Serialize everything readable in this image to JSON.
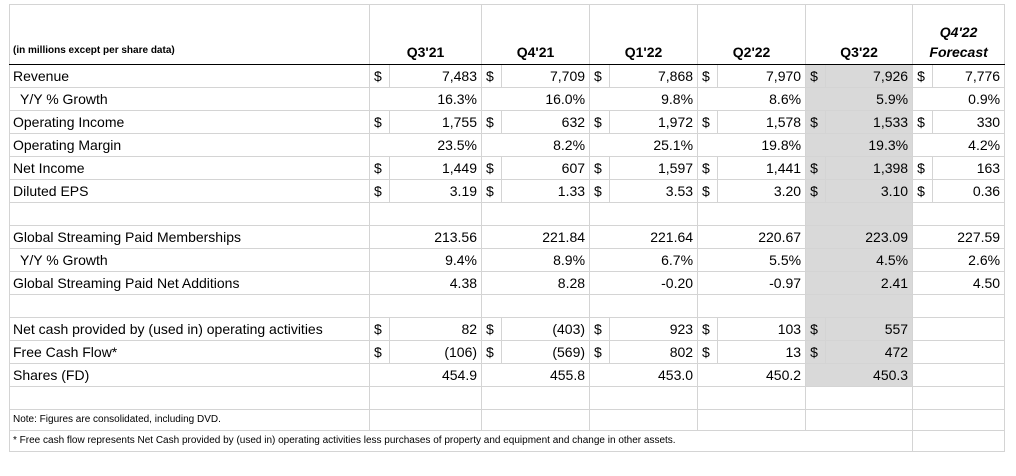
{
  "header": {
    "units_label": "(in millions except per share data)",
    "q3_21": "Q3'21",
    "q4_21": "Q4'21",
    "q1_22": "Q1'22",
    "q2_22": "Q2'22",
    "q3_22": "Q3'22",
    "q4_22": "Q4'22",
    "q4_22_sub": "Forecast"
  },
  "currency_symbol": "$",
  "rows": {
    "revenue": {
      "label": "Revenue",
      "v": [
        "7,483",
        "7,709",
        "7,868",
        "7,970",
        "7,926",
        "7,776"
      ]
    },
    "revenue_growth": {
      "label": "Y/Y % Growth",
      "v": [
        "16.3%",
        "16.0%",
        "9.8%",
        "8.6%",
        "5.9%",
        "0.9%"
      ]
    },
    "op_income": {
      "label": "Operating Income",
      "v": [
        "1,755",
        "632",
        "1,972",
        "1,578",
        "1,533",
        "330"
      ]
    },
    "op_margin": {
      "label": "Operating Margin",
      "v": [
        "23.5%",
        "8.2%",
        "25.1%",
        "19.8%",
        "19.3%",
        "4.2%"
      ]
    },
    "net_income": {
      "label": "Net Income",
      "v": [
        "1,449",
        "607",
        "1,597",
        "1,441",
        "1,398",
        "163"
      ]
    },
    "eps": {
      "label": "Diluted EPS",
      "v": [
        "3.19",
        "1.33",
        "3.53",
        "3.20",
        "3.10",
        "0.36"
      ]
    },
    "memberships": {
      "label": "Global Streaming Paid Memberships",
      "v": [
        "213.56",
        "221.84",
        "221.64",
        "220.67",
        "223.09",
        "227.59"
      ]
    },
    "memb_growth": {
      "label": "Y/Y % Growth",
      "v": [
        "9.4%",
        "8.9%",
        "6.7%",
        "5.5%",
        "4.5%",
        "2.6%"
      ]
    },
    "net_adds": {
      "label": "Global Streaming Paid Net Additions",
      "v": [
        "4.38",
        "8.28",
        "-0.20",
        "-0.97",
        "2.41",
        "4.50"
      ]
    },
    "op_cash": {
      "label": "Net cash provided by (used in) operating activities",
      "v": [
        "82",
        "(403)",
        "923",
        "103",
        "557",
        ""
      ]
    },
    "fcf": {
      "label": "Free Cash Flow*",
      "v": [
        "(106)",
        "(569)",
        "802",
        "13",
        "472",
        ""
      ]
    },
    "shares": {
      "label": "Shares (FD)",
      "v": [
        "454.9",
        "455.8",
        "453.0",
        "450.2",
        "450.3",
        ""
      ]
    }
  },
  "notes": {
    "note1": "Note: Figures are consolidated, including DVD.",
    "note2": "* Free cash flow represents Net Cash provided by (used in) operating activities less purchases of property and equipment and change in other assets."
  },
  "colors": {
    "highlight": "#d9d9d9",
    "grid": "#d4d4d4"
  }
}
